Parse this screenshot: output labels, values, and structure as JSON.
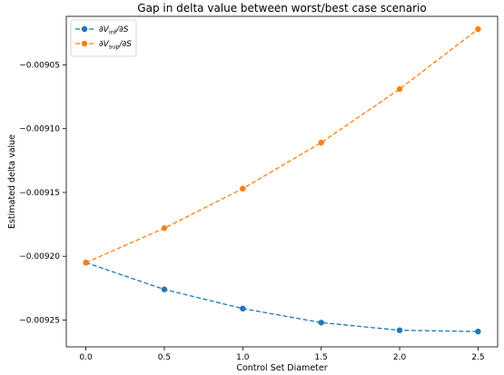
{
  "chart_data": {
    "type": "line",
    "title": "Gap in delta value between worst/best case scenario",
    "xlabel": "Control Set Diameter",
    "ylabel": "Estimated delta value",
    "x": [
      0.0,
      0.5,
      1.0,
      1.5,
      2.0,
      2.5
    ],
    "xlim": [
      -0.125,
      2.625
    ],
    "ylim": [
      -0.009271,
      -0.009012
    ],
    "xticks": [
      0.0,
      0.5,
      1.0,
      1.5,
      2.0,
      2.5
    ],
    "xtick_labels": [
      "0.0",
      "0.5",
      "1.0",
      "1.5",
      "2.0",
      "2.5"
    ],
    "yticks": [
      -0.00925,
      -0.0092,
      -0.00915,
      -0.0091,
      -0.00905
    ],
    "ytick_labels": [
      "−0.00925",
      "−0.00920",
      "−0.00915",
      "−0.00910",
      "−0.00905"
    ],
    "grid": false,
    "legend_position": "top-left",
    "series": [
      {
        "name": "∂V_inf/∂S",
        "legend_main": "∂V",
        "legend_sub": "inf",
        "legend_tail": "/∂S",
        "color": "#1f77b4",
        "values": [
          -0.009205,
          -0.009226,
          -0.009241,
          -0.009252,
          -0.009258,
          -0.009259
        ]
      },
      {
        "name": "∂V_sup/∂S",
        "legend_main": "∂V",
        "legend_sub": "sup",
        "legend_tail": "/∂S",
        "color": "#ff7f0e",
        "values": [
          -0.009205,
          -0.009178,
          -0.009147,
          -0.009111,
          -0.009069,
          -0.009022
        ]
      }
    ]
  }
}
